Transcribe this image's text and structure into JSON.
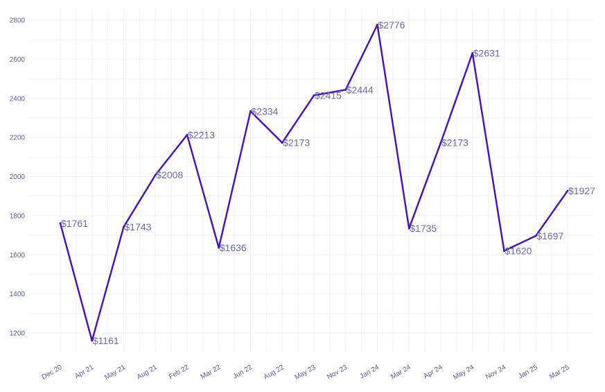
{
  "chart_data": {
    "type": "line",
    "title": "",
    "xlabel": "",
    "ylabel": "",
    "categories": [
      "Dec 20",
      "Apr 21",
      "May 21",
      "Aug 21",
      "Feb 22",
      "Mar 22",
      "Jun 22",
      "Aug 22",
      "May 23",
      "Nov 23",
      "Jan 24",
      "Mar 24",
      "Apr 24",
      "May 24",
      "Nov 24",
      "Jan 25",
      "Mar 25"
    ],
    "series": [
      {
        "values": [
          1761,
          1161,
          1743,
          2008,
          2213,
          1636,
          2334,
          2173,
          2415,
          2444,
          2776,
          1735,
          2173,
          2631,
          1620,
          1697,
          1927
        ],
        "labels": [
          "$1761",
          "$1161",
          "$1743",
          "$2008",
          "$2213",
          "$1636",
          "$2334",
          "$2173",
          "$2415",
          "$2444",
          "$2776",
          "$1735",
          "$2173",
          "$2631",
          "$1620",
          "$1697",
          "$1927"
        ],
        "color": "#4a17a8"
      }
    ],
    "yticks": [
      1200,
      1400,
      1600,
      1800,
      2000,
      2200,
      2400,
      2600,
      2800
    ],
    "ylim": [
      1100,
      2850
    ],
    "grid": true,
    "colors": {
      "line": "#4a17a8",
      "tick_label": "#5b5b9e",
      "data_label": "#6b6ba8",
      "grid": "#f2f2f6"
    }
  }
}
